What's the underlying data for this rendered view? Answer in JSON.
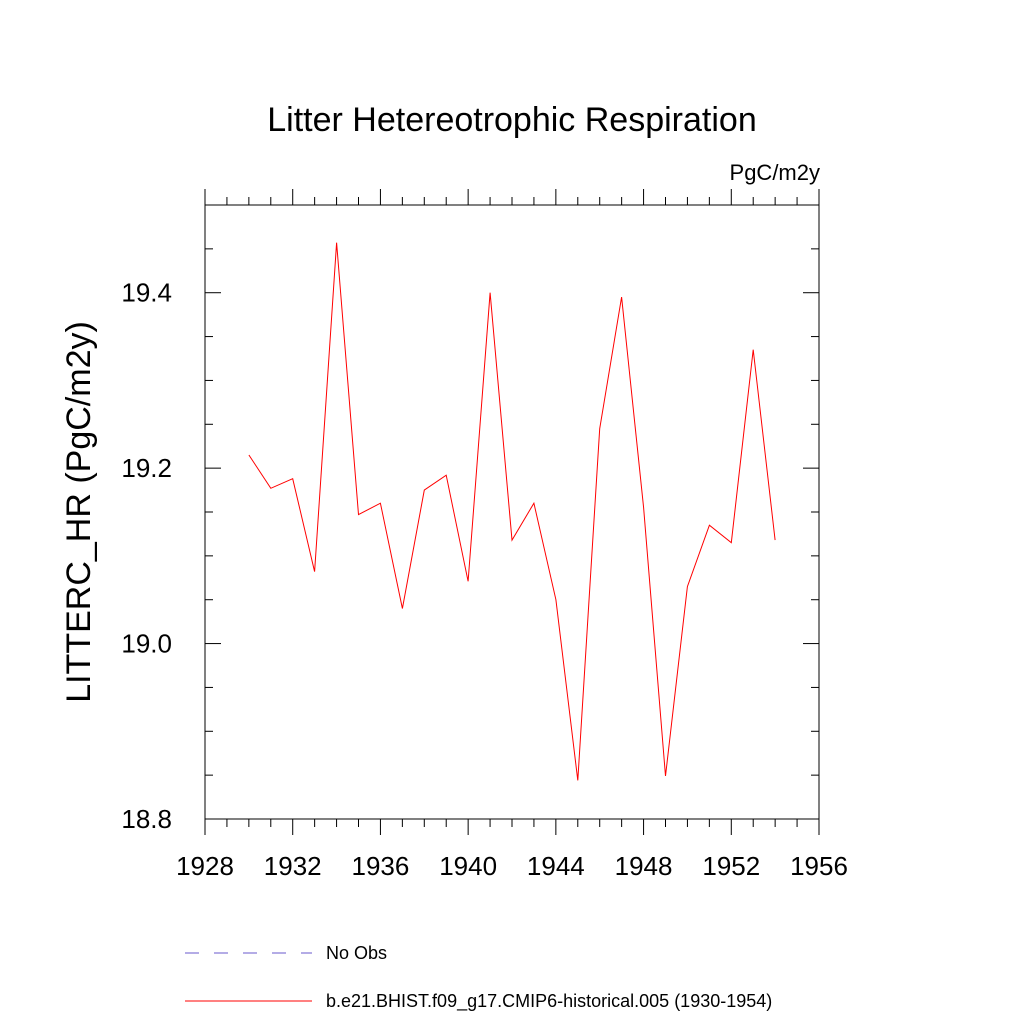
{
  "chart_data": {
    "type": "line",
    "title": "Litter Hetereotrophic Respiration",
    "units_label": "PgC/m2y",
    "xlabel": "",
    "ylabel": "LITTERC_HR  (PgC/m2y)",
    "xlim": [
      1928,
      1956
    ],
    "ylim": [
      18.8,
      19.5
    ],
    "x_ticks": [
      1928,
      1932,
      1936,
      1940,
      1944,
      1948,
      1952,
      1956
    ],
    "x_tick_labels": [
      "1928",
      "1932",
      "1936",
      "1940",
      "1944",
      "1948",
      "1952",
      "1956"
    ],
    "y_ticks": [
      18.8,
      19.0,
      19.2,
      19.4
    ],
    "y_tick_labels": [
      "18.8",
      "19.0",
      "19.2",
      "19.4"
    ],
    "grid": false,
    "legend_position": "bottom",
    "series": [
      {
        "name": "b.e21.BHIST.f09_g17.CMIP6-historical.005 (1930-1954)",
        "color": "#ff0000",
        "style": "solid",
        "x": [
          1930,
          1931,
          1932,
          1933,
          1934,
          1935,
          1936,
          1937,
          1938,
          1939,
          1940,
          1941,
          1942,
          1943,
          1944,
          1945,
          1946,
          1947,
          1948,
          1949,
          1950,
          1951,
          1952,
          1953,
          1954
        ],
        "y": [
          19.215,
          19.177,
          19.188,
          19.082,
          19.457,
          19.147,
          19.16,
          19.04,
          19.175,
          19.192,
          19.071,
          19.4,
          19.118,
          19.16,
          19.05,
          18.844,
          19.245,
          19.395,
          19.155,
          18.849,
          19.065,
          19.135,
          19.115,
          19.335,
          19.118
        ]
      }
    ],
    "legend": [
      {
        "label": "No Obs",
        "color": "#6a5acd",
        "style": "dashed"
      },
      {
        "label": "b.e21.BHIST.f09_g17.CMIP6-historical.005 (1930-1954)",
        "color": "#ff0000",
        "style": "solid"
      }
    ]
  }
}
